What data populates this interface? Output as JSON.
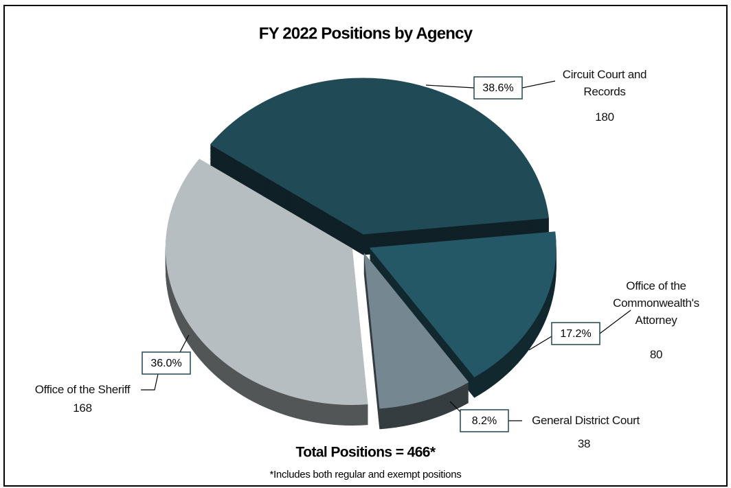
{
  "chart_data": {
    "type": "pie",
    "title": "FY 2022 Positions by Agency",
    "categories": [
      "Circuit Court and Records",
      "Office of the Commonwealth's Attorney",
      "General District Court",
      "Office of the Sheriff"
    ],
    "values": [
      180,
      80,
      38,
      168
    ],
    "share_labels": [
      "38.6%",
      "17.2%",
      "8.2%",
      "36.0%"
    ],
    "colors": [
      "#214a57",
      "#255866",
      "#758891",
      "#b7bec2"
    ],
    "total_label": "Total Positions = 466*",
    "note": "*Includes both regular and exempt positions"
  }
}
